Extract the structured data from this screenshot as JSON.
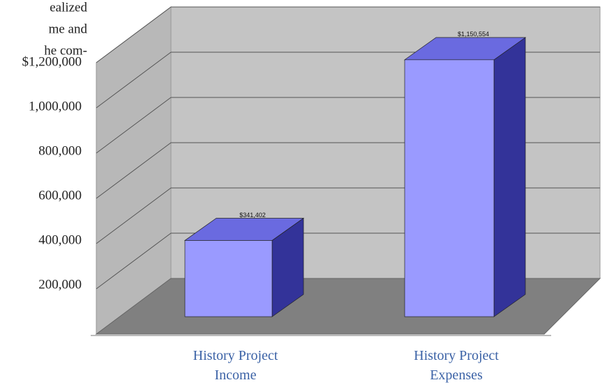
{
  "text_fragments": [
    "ealized",
    "me and",
    "he com-"
  ],
  "chart_data": {
    "type": "bar3d",
    "categories": [
      "History Project Income",
      "History Project Expenses"
    ],
    "values": [
      341402,
      1150554
    ],
    "value_labels": [
      "$341,402",
      "$1,150,554"
    ],
    "colors": {
      "front": "#9a9aff",
      "top": "#6a6ae0",
      "side": "#333399"
    },
    "ylim": [
      0,
      1200000
    ],
    "yticks": [
      {
        "value": 200000,
        "label": "200,000"
      },
      {
        "value": 400000,
        "label": "400,000"
      },
      {
        "value": 600000,
        "label": "600,000"
      },
      {
        "value": 800000,
        "label": "800,000"
      },
      {
        "value": 1000000,
        "label": "1,000,000"
      },
      {
        "value": 1200000,
        "label": "$1,200,000"
      }
    ],
    "grid": true
  }
}
